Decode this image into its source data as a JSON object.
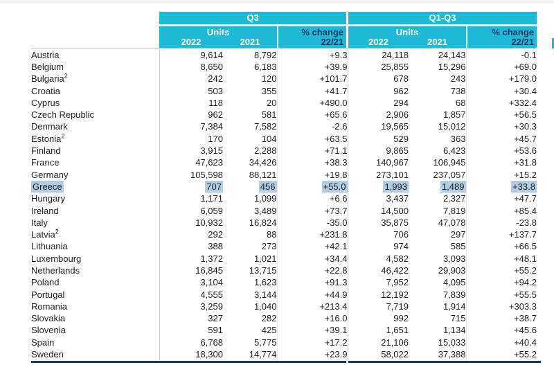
{
  "colors": {
    "cyan": "#1eb9d6",
    "navy": "#17375e",
    "body_text": "#1f1f1f",
    "grid_grey": "#c4c4c4",
    "top_line": "#d9d9d9",
    "highlight": "#b2cce4"
  },
  "header": {
    "q3": {
      "title": "Q3",
      "units_label": "Units",
      "change_label": "% change",
      "change_sub": "22/21",
      "year_2022": "2022",
      "year_2021": "2021"
    },
    "q1q3": {
      "title": "Q1-Q3",
      "units_label": "Units",
      "change_label": "% change",
      "change_sub": "22/21",
      "year_2022": "2022",
      "year_2021": "2021"
    }
  },
  "table": {
    "rows": [
      {
        "country": "Austria",
        "sup": "",
        "highlight": false,
        "values": [
          "9,614",
          "8,792",
          "+9.3",
          "24,118",
          "24,143",
          "-0.1"
        ]
      },
      {
        "country": "Belgium",
        "sup": "",
        "highlight": false,
        "values": [
          "8,650",
          "6,183",
          "+39.9",
          "25,855",
          "15,296",
          "+69.0"
        ]
      },
      {
        "country": "Bulgaria",
        "sup": "2",
        "highlight": false,
        "values": [
          "242",
          "120",
          "+101.7",
          "678",
          "243",
          "+179.0"
        ]
      },
      {
        "country": "Croatia",
        "sup": "",
        "highlight": false,
        "values": [
          "503",
          "355",
          "+41.7",
          "962",
          "738",
          "+30.4"
        ]
      },
      {
        "country": "Cyprus",
        "sup": "",
        "highlight": false,
        "values": [
          "118",
          "20",
          "+490.0",
          "294",
          "68",
          "+332.4"
        ]
      },
      {
        "country": "Czech Republic",
        "sup": "",
        "highlight": false,
        "values": [
          "962",
          "581",
          "+65.6",
          "2,906",
          "1,857",
          "+56.5"
        ]
      },
      {
        "country": "Denmark",
        "sup": "",
        "highlight": false,
        "values": [
          "7,384",
          "7,582",
          "-2.6",
          "19,565",
          "15,012",
          "+30.3"
        ]
      },
      {
        "country": "Estonia",
        "sup": "2",
        "highlight": false,
        "values": [
          "170",
          "104",
          "+63.5",
          "529",
          "363",
          "+45.7"
        ]
      },
      {
        "country": "Finland",
        "sup": "",
        "highlight": false,
        "values": [
          "3,915",
          "2,288",
          "+71.1",
          "9,865",
          "6,423",
          "+53.6"
        ]
      },
      {
        "country": "France",
        "sup": "",
        "highlight": false,
        "values": [
          "47,623",
          "34,426",
          "+38.3",
          "140,967",
          "106,945",
          "+31.8"
        ]
      },
      {
        "country": "Germany",
        "sup": "",
        "highlight": false,
        "values": [
          "105,598",
          "88,121",
          "+19.8",
          "273,101",
          "237,057",
          "+15.2"
        ]
      },
      {
        "country": "Greece",
        "sup": "",
        "highlight": true,
        "values": [
          "707",
          "456",
          "+55.0",
          "1,993",
          "1,489",
          "+33.8"
        ]
      },
      {
        "country": "Hungary",
        "sup": "",
        "highlight": false,
        "values": [
          "1,171",
          "1,099",
          "+6.6",
          "3,437",
          "2,327",
          "+47.7"
        ]
      },
      {
        "country": "Ireland",
        "sup": "",
        "highlight": false,
        "values": [
          "6,059",
          "3,489",
          "+73.7",
          "14,500",
          "7,819",
          "+85.4"
        ]
      },
      {
        "country": "Italy",
        "sup": "",
        "highlight": false,
        "values": [
          "10,932",
          "16,824",
          "-35.0",
          "35,875",
          "47,078",
          "-23.8"
        ]
      },
      {
        "country": "Latvia",
        "sup": "2",
        "highlight": false,
        "values": [
          "292",
          "88",
          "+231.8",
          "706",
          "297",
          "+137.7"
        ]
      },
      {
        "country": "Lithuania",
        "sup": "",
        "highlight": false,
        "values": [
          "388",
          "273",
          "+42.1",
          "974",
          "585",
          "+66.5"
        ]
      },
      {
        "country": "Luxembourg",
        "sup": "",
        "highlight": false,
        "values": [
          "1,372",
          "1,021",
          "+34.4",
          "4,582",
          "3,093",
          "+48.1"
        ]
      },
      {
        "country": "Netherlands",
        "sup": "",
        "highlight": false,
        "values": [
          "16,845",
          "13,715",
          "+22.8",
          "46,422",
          "29,903",
          "+55.2"
        ]
      },
      {
        "country": "Poland",
        "sup": "",
        "highlight": false,
        "values": [
          "3,104",
          "1,623",
          "+91.3",
          "7,952",
          "4,095",
          "+94.2"
        ]
      },
      {
        "country": "Portugal",
        "sup": "",
        "highlight": false,
        "values": [
          "4,555",
          "3,144",
          "+44.9",
          "12,192",
          "7,839",
          "+55.5"
        ]
      },
      {
        "country": "Romania",
        "sup": "",
        "highlight": false,
        "values": [
          "3,259",
          "1,040",
          "+213.4",
          "7,719",
          "1,914",
          "+303.3"
        ]
      },
      {
        "country": "Slovakia",
        "sup": "",
        "highlight": false,
        "values": [
          "327",
          "282",
          "+16.0",
          "992",
          "715",
          "+38.7"
        ]
      },
      {
        "country": "Slovenia",
        "sup": "",
        "highlight": false,
        "values": [
          "591",
          "425",
          "+39.1",
          "1,651",
          "1,134",
          "+45.6"
        ]
      },
      {
        "country": "Spain",
        "sup": "",
        "highlight": false,
        "values": [
          "6,768",
          "5,775",
          "+17.2",
          "21,106",
          "15,033",
          "+40.4"
        ]
      },
      {
        "country": "Sweden",
        "sup": "",
        "highlight": false,
        "values": [
          "18,300",
          "14,774",
          "+23.9",
          "58,022",
          "37,388",
          "+55.2"
        ]
      }
    ]
  }
}
